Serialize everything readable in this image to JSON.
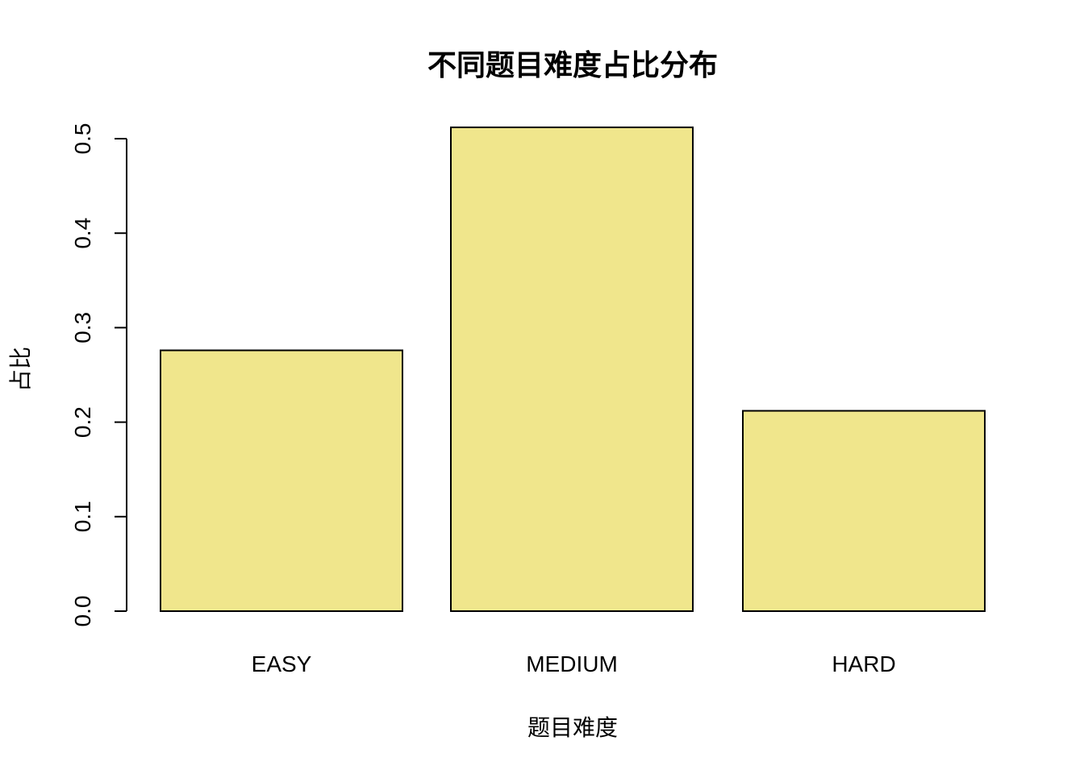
{
  "chart_data": {
    "type": "bar",
    "title": "不同题目难度占比分布",
    "xlabel": "题目难度",
    "ylabel": "占比",
    "categories": [
      "EASY",
      "MEDIUM",
      "HARD"
    ],
    "values": [
      0.276,
      0.512,
      0.212
    ],
    "ylim": [
      0,
      0.5
    ],
    "yticks": [
      "0.0",
      "0.1",
      "0.2",
      "0.3",
      "0.4",
      "0.5"
    ],
    "bar_color": "#F0E68C",
    "grid": false,
    "legend": "none"
  }
}
